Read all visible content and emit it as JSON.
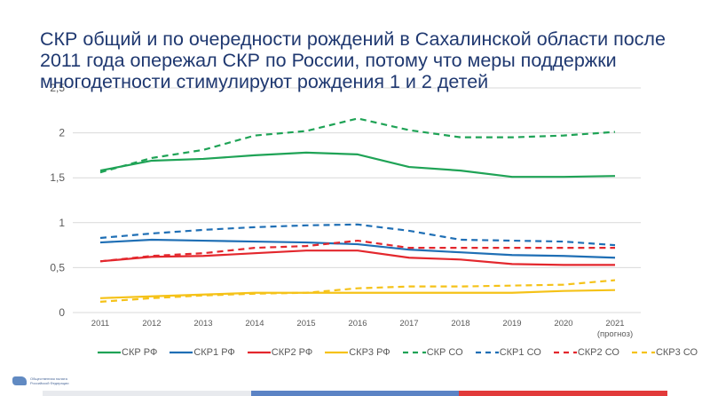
{
  "slide": {
    "title": "СКР общий и по очередности рождений в Сахалинской области после 2011 года опережал СКР по России, потому что меры поддержки многодетности стимулируют рождения 1 и 2 детей",
    "logo_text": "Общественная палата Российской Федерации",
    "bottom_bar_colors": [
      "#e8eaee",
      "#5b83c5",
      "#e23a3a"
    ]
  },
  "chart_data": {
    "type": "line",
    "title": "",
    "xlabel": "",
    "ylabel": "",
    "categories": [
      "2011",
      "2012",
      "2013",
      "2014",
      "2015",
      "2016",
      "2017",
      "2018",
      "2019",
      "2020",
      "2021"
    ],
    "category_sublabels": [
      "",
      "",
      "",
      "",
      "",
      "",
      "",
      "",
      "",
      "",
      "(прогноз)"
    ],
    "ylim": [
      0,
      2.5
    ],
    "yticks": [
      0,
      0.5,
      1,
      1.5,
      2,
      2.5
    ],
    "ytick_labels": [
      "0",
      "0,5",
      "1",
      "1,5",
      "2",
      "2,5"
    ],
    "grid": true,
    "legend_position": "bottom",
    "series": [
      {
        "name": "СКР РФ",
        "color": "#1fa356",
        "dashed": false,
        "values": [
          1.58,
          1.69,
          1.71,
          1.75,
          1.78,
          1.76,
          1.62,
          1.58,
          1.51,
          1.51,
          1.52
        ]
      },
      {
        "name": "СКР1 РФ",
        "color": "#1f6fb5",
        "dashed": false,
        "values": [
          0.78,
          0.81,
          0.8,
          0.79,
          0.78,
          0.76,
          0.7,
          0.67,
          0.64,
          0.63,
          0.61
        ]
      },
      {
        "name": "СКР2 РФ",
        "color": "#e3272d",
        "dashed": false,
        "values": [
          0.57,
          0.62,
          0.63,
          0.66,
          0.69,
          0.69,
          0.61,
          0.59,
          0.54,
          0.53,
          0.53
        ]
      },
      {
        "name": "СКР3 РФ",
        "color": "#f5c218",
        "dashed": false,
        "values": [
          0.16,
          0.18,
          0.2,
          0.22,
          0.22,
          0.22,
          0.22,
          0.22,
          0.22,
          0.24,
          0.25
        ]
      },
      {
        "name": "СКР СО",
        "color": "#1fa356",
        "dashed": true,
        "values": [
          1.56,
          1.72,
          1.81,
          1.97,
          2.02,
          2.16,
          2.03,
          1.95,
          1.95,
          1.97,
          2.01
        ]
      },
      {
        "name": "СКР1 СО",
        "color": "#1f6fb5",
        "dashed": true,
        "values": [
          0.83,
          0.88,
          0.92,
          0.95,
          0.97,
          0.98,
          0.91,
          0.81,
          0.8,
          0.79,
          0.75
        ]
      },
      {
        "name": "СКР2 СО",
        "color": "#e3272d",
        "dashed": true,
        "values": [
          0.57,
          0.63,
          0.66,
          0.72,
          0.74,
          0.8,
          0.72,
          0.72,
          0.72,
          0.72,
          0.72
        ]
      },
      {
        "name": "СКР3 СО",
        "color": "#f5c218",
        "dashed": true,
        "values": [
          0.12,
          0.16,
          0.19,
          0.21,
          0.22,
          0.27,
          0.29,
          0.29,
          0.3,
          0.31,
          0.36
        ]
      }
    ]
  }
}
